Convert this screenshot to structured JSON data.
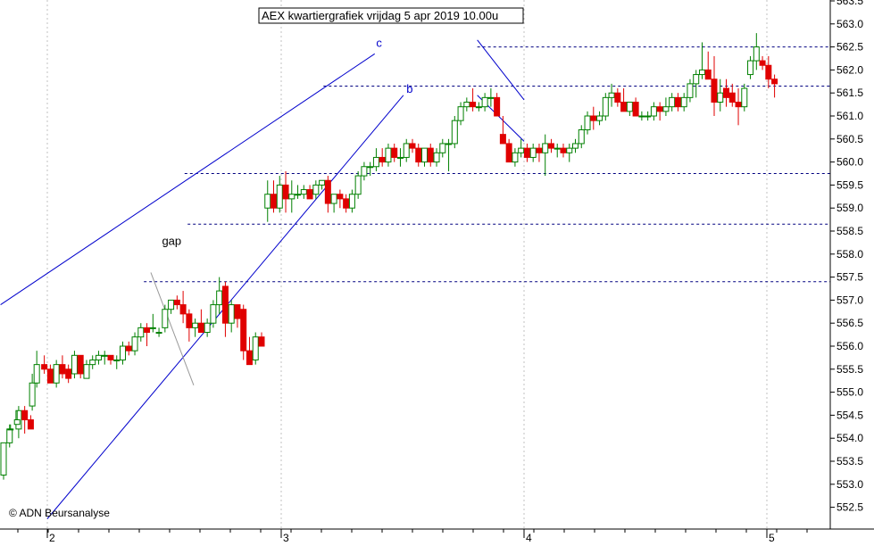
{
  "chart_data": {
    "type": "candlestick",
    "title": "AEX kwartiergrafiek vrijdag 5 apr 2019 10.00u",
    "copyright": "© ADN Beursanalyse",
    "ylim": [
      552.25,
      563.75
    ],
    "grid": true,
    "y_axis_side": "right",
    "y_ticks": [
      "552.5",
      "553.0",
      "553.5",
      "554.0",
      "554.5",
      "555.0",
      "555.5",
      "556.0",
      "556.5",
      "557.0",
      "557.5",
      "558.0",
      "558.5",
      "559.0",
      "559.5",
      "560.0",
      "560.5",
      "561.0",
      "561.5",
      "562.0",
      "562.5",
      "563.0",
      "563.5"
    ],
    "x_ticks": [
      "2",
      "3",
      "4",
      "5"
    ],
    "colors": {
      "up": "#008000",
      "down": "#e00000",
      "trendline": "#0000cc",
      "support": "#000080",
      "grid": "#c0c0c0"
    },
    "annotations": [
      {
        "text": "c",
        "x_bar": 123.5,
        "y": 562.5
      },
      {
        "text": "b",
        "x_bar": 133.5,
        "y": 561.5
      },
      {
        "text": "gap",
        "x_bar": 52.5,
        "y": 558.2
      }
    ],
    "trend_lines": [
      {
        "name": "c",
        "from": [
          -1,
          556.9
        ],
        "to": [
          123.0,
          562.35
        ]
      },
      {
        "name": "b",
        "from": [
          14.5,
          552.25
        ],
        "to": [
          132.5,
          561.45
        ]
      }
    ],
    "channel_lines": [
      {
        "from": [
          48.8,
          557.6
        ],
        "to": [
          63.0,
          555.15
        ]
      },
      {
        "from": [
          157.0,
          562.65
        ],
        "to": [
          172.5,
          561.35
        ]
      },
      {
        "from": [
          157.0,
          561.45
        ],
        "to": [
          172.5,
          560.45
        ]
      }
    ],
    "horizontal_levels": [
      {
        "y": 562.5,
        "from_bar": 157,
        "to": "end"
      },
      {
        "y": 561.65,
        "from_bar": 106,
        "to": "end"
      },
      {
        "y": 559.75,
        "from_bar": 60,
        "to": "end"
      },
      {
        "y": 558.65,
        "from_bar": 61,
        "to": "end"
      },
      {
        "y": 557.4,
        "from_bar": 46.5,
        "to": "end"
      }
    ],
    "candles": [
      [
        553.2,
        553.9,
        553.1,
        553.9
      ],
      [
        553.9,
        554.3,
        553.8,
        554.2
      ],
      [
        554.2,
        554.7,
        554.0,
        554.6
      ],
      [
        554.6,
        554.7,
        554.1,
        554.4
      ],
      [
        554.4,
        554.5,
        554.2,
        554.2
      ],
      [
        554.2,
        554.3,
        554.2,
        554.2
      ],
      [
        554.3,
        554.6,
        554.3,
        554.4
      ],
      [
        554.7,
        555.4,
        554.6,
        555.2
      ],
      [
        555.2,
        555.9,
        555.1,
        555.6
      ],
      [
        555.6,
        555.8,
        555.4,
        555.5
      ],
      [
        555.5,
        555.6,
        555.2,
        555.2
      ],
      [
        555.2,
        555.7,
        555.1,
        555.6
      ],
      [
        555.6,
        555.8,
        555.3,
        555.4
      ],
      [
        555.5,
        555.6,
        555.2,
        555.3
      ],
      [
        555.4,
        555.9,
        555.3,
        555.8
      ],
      [
        555.8,
        555.8,
        555.3,
        555.4
      ],
      [
        555.3,
        555.7,
        555.3,
        555.6
      ],
      [
        555.6,
        555.8,
        555.5,
        555.7
      ],
      [
        555.7,
        555.9,
        555.6,
        555.8
      ],
      [
        555.8,
        555.9,
        555.6,
        555.8
      ],
      [
        555.8,
        555.8,
        555.6,
        555.7
      ],
      [
        555.7,
        555.8,
        555.5,
        555.7
      ],
      [
        555.7,
        556.1,
        555.6,
        556.0
      ],
      [
        556.0,
        556.1,
        555.8,
        555.9
      ],
      [
        555.9,
        556.3,
        555.8,
        556.2
      ],
      [
        556.2,
        556.5,
        556.1,
        556.4
      ],
      [
        556.4,
        556.5,
        556.0,
        556.3
      ],
      [
        556.4,
        556.7,
        556.3,
        556.4
      ],
      [
        556.3,
        556.4,
        556.2,
        556.3
      ],
      [
        556.4,
        556.9,
        556.3,
        556.8
      ],
      [
        556.8,
        557.0,
        556.7,
        557.0
      ],
      [
        557.0,
        557.1,
        556.8,
        556.9
      ],
      [
        556.9,
        557.2,
        556.5,
        556.7
      ],
      [
        556.7,
        556.8,
        556.1,
        556.4
      ],
      [
        556.4,
        556.6,
        556.2,
        556.5
      ],
      [
        556.5,
        556.8,
        556.3,
        556.3
      ],
      [
        556.3,
        556.6,
        556.2,
        556.5
      ],
      [
        556.5,
        557.0,
        556.4,
        556.9
      ],
      [
        556.9,
        557.5,
        556.7,
        557.2
      ],
      [
        557.3,
        557.4,
        556.2,
        556.5
      ],
      [
        556.5,
        557.0,
        556.3,
        556.9
      ],
      [
        556.9,
        556.9,
        556.4,
        556.6
      ],
      [
        556.8,
        556.9,
        555.7,
        555.9
      ],
      [
        555.9,
        556.2,
        555.6,
        555.6
      ],
      [
        555.7,
        556.3,
        555.6,
        556.2
      ],
      [
        556.2,
        556.3,
        556.0,
        556.0
      ],
      [
        559.0,
        559.6,
        558.7,
        559.3
      ],
      [
        559.3,
        559.6,
        558.9,
        559.0
      ],
      [
        559.0,
        559.7,
        558.9,
        559.5
      ],
      [
        559.5,
        559.8,
        558.9,
        559.2
      ],
      [
        559.2,
        559.6,
        558.9,
        559.3
      ],
      [
        559.3,
        559.5,
        559.2,
        559.3
      ],
      [
        559.3,
        559.5,
        559.2,
        559.4
      ],
      [
        559.4,
        559.5,
        559.2,
        559.2
      ],
      [
        559.3,
        559.6,
        559.2,
        559.5
      ],
      [
        559.5,
        559.6,
        559.4,
        559.6
      ],
      [
        559.6,
        559.7,
        558.9,
        559.1
      ],
      [
        559.1,
        559.3,
        558.9,
        559.3
      ],
      [
        559.3,
        559.4,
        559.0,
        559.2
      ],
      [
        559.2,
        559.3,
        558.9,
        559.0
      ],
      [
        559.0,
        559.4,
        558.9,
        559.3
      ],
      [
        559.3,
        559.8,
        559.2,
        559.7
      ],
      [
        559.7,
        560.0,
        559.6,
        559.9
      ],
      [
        559.9,
        560.0,
        559.7,
        559.9
      ],
      [
        559.9,
        560.3,
        559.8,
        560.1
      ],
      [
        560.1,
        560.3,
        559.9,
        560.0
      ],
      [
        560.0,
        560.4,
        559.9,
        560.3
      ],
      [
        560.3,
        560.4,
        560.0,
        560.1
      ],
      [
        560.1,
        560.3,
        559.9,
        560.1
      ],
      [
        560.1,
        560.5,
        560.0,
        560.4
      ],
      [
        560.4,
        560.5,
        560.2,
        560.3
      ],
      [
        560.3,
        560.4,
        559.9,
        560.0
      ],
      [
        560.0,
        560.3,
        559.9,
        560.3
      ],
      [
        560.3,
        560.4,
        559.9,
        560.0
      ],
      [
        560.0,
        560.3,
        559.9,
        560.2
      ],
      [
        560.2,
        560.5,
        560.1,
        560.4
      ],
      [
        560.4,
        560.5,
        559.8,
        560.4
      ],
      [
        560.4,
        561.0,
        560.3,
        560.9
      ],
      [
        560.9,
        561.3,
        560.8,
        561.2
      ],
      [
        561.2,
        561.4,
        561.1,
        561.3
      ],
      [
        561.3,
        561.6,
        561.1,
        561.2
      ],
      [
        561.2,
        561.3,
        561.1,
        561.2
      ],
      [
        561.2,
        561.5,
        561.1,
        561.4
      ],
      [
        561.4,
        561.6,
        561.2,
        561.4
      ],
      [
        561.4,
        561.5,
        561.0,
        561.0
      ],
      [
        560.6,
        561.0,
        560.4,
        560.4
      ],
      [
        560.4,
        560.5,
        560.0,
        560.0
      ],
      [
        560.0,
        560.3,
        559.9,
        560.2
      ],
      [
        560.2,
        560.5,
        560.1,
        560.3
      ],
      [
        560.3,
        560.4,
        560.0,
        560.1
      ],
      [
        560.1,
        560.4,
        560.0,
        560.3
      ],
      [
        560.3,
        560.4,
        560.0,
        560.2
      ],
      [
        560.2,
        560.6,
        559.7,
        560.4
      ],
      [
        560.4,
        560.5,
        560.2,
        560.3
      ],
      [
        560.3,
        560.4,
        560.1,
        560.3
      ],
      [
        560.3,
        560.4,
        560.1,
        560.2
      ],
      [
        560.2,
        560.4,
        560.0,
        560.3
      ],
      [
        560.3,
        560.5,
        560.2,
        560.4
      ],
      [
        560.4,
        560.8,
        560.3,
        560.7
      ],
      [
        560.7,
        561.1,
        560.6,
        561.0
      ],
      [
        561.0,
        561.2,
        560.7,
        560.9
      ],
      [
        560.9,
        561.1,
        560.8,
        561.0
      ],
      [
        561.0,
        561.5,
        560.9,
        561.4
      ],
      [
        561.4,
        561.7,
        561.2,
        561.5
      ],
      [
        561.5,
        561.6,
        561.2,
        561.3
      ],
      [
        561.3,
        561.6,
        561.1,
        561.1
      ],
      [
        561.1,
        561.3,
        561.0,
        561.3
      ],
      [
        561.3,
        561.4,
        561.0,
        561.0
      ],
      [
        561.0,
        561.1,
        560.9,
        561.0
      ],
      [
        561.0,
        561.1,
        560.9,
        561.0
      ],
      [
        561.0,
        561.3,
        560.9,
        561.2
      ],
      [
        561.2,
        561.3,
        560.9,
        561.1
      ],
      [
        561.1,
        561.4,
        561.0,
        561.2
      ],
      [
        561.2,
        561.5,
        561.1,
        561.4
      ],
      [
        561.4,
        561.5,
        561.1,
        561.2
      ],
      [
        561.2,
        561.5,
        561.1,
        561.4
      ],
      [
        561.4,
        561.8,
        561.3,
        561.7
      ],
      [
        561.7,
        562.0,
        561.4,
        561.9
      ],
      [
        561.9,
        562.6,
        561.8,
        562.0
      ],
      [
        562.0,
        562.4,
        561.8,
        561.8
      ],
      [
        561.8,
        562.3,
        561.0,
        561.3
      ],
      [
        561.3,
        561.8,
        561.1,
        561.5
      ],
      [
        561.6,
        561.8,
        561.2,
        561.4
      ],
      [
        561.5,
        561.7,
        561.2,
        561.3
      ],
      [
        561.3,
        561.6,
        560.8,
        561.2
      ],
      [
        561.2,
        561.7,
        561.1,
        561.6
      ],
      [
        561.9,
        562.3,
        561.8,
        562.2
      ],
      [
        562.2,
        562.8,
        562.0,
        562.5
      ],
      [
        562.2,
        562.3,
        562.0,
        562.1
      ],
      [
        562.1,
        562.3,
        561.6,
        561.8
      ],
      [
        561.8,
        561.9,
        561.4,
        561.7
      ]
    ],
    "candle_x": [
      0,
      2,
      5,
      7,
      9,
      2.3,
      4.5,
      9.5,
      11,
      13.5,
      15.5,
      17.5,
      19.5,
      21.5,
      23.5,
      25.5,
      27.5,
      29.5,
      31.5,
      33.5,
      35.5,
      37.5,
      39.5,
      41.5,
      43.5,
      45.5,
      47.5,
      49.5,
      51.5,
      53.5,
      55.5,
      57.5,
      59.5,
      61.5,
      63.5,
      65.5,
      67.5,
      69.5,
      71.5,
      73.5,
      75.5,
      77.5,
      79.5,
      81.5,
      83.5,
      85.5,
      87.5,
      89.5,
      91.5,
      93.5,
      95.5,
      97.5,
      99.5,
      101.5,
      103.5,
      105.5,
      107.5,
      109.5,
      111.5,
      113.5,
      115.5,
      117.5,
      119.5,
      121.5,
      123.5,
      125.5,
      127.5,
      129.5,
      131.5,
      133.5,
      135.5,
      137.5,
      139.5,
      141.5,
      143.5,
      145.5,
      147.5,
      149.5,
      151.5,
      153.5,
      155.5,
      157.5,
      159.5,
      161.5,
      163.5,
      165.5,
      167.5,
      169.5,
      171.5,
      173.5,
      175.5,
      177.5,
      179.5,
      181.5,
      183.5,
      185.5,
      187.5,
      189.5,
      191.5,
      193.5,
      195.5,
      197.5,
      199.5,
      201.5,
      203.5,
      205.5,
      207.5,
      209.5,
      211.5,
      213.5,
      215.5,
      217.5,
      219.5,
      221.5,
      223.5,
      225.5,
      227.5,
      229.5,
      231.5,
      233.5,
      235.5,
      237.5,
      239.5,
      241.5,
      243.5,
      245.5,
      247.5,
      249.5,
      251.5,
      253.5,
      255.5
    ]
  }
}
